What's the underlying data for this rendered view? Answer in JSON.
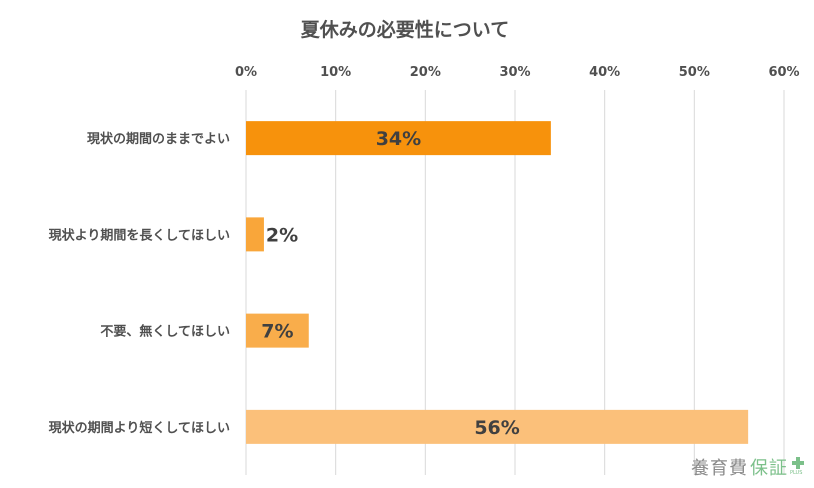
{
  "chart_data": {
    "type": "bar",
    "orientation": "horizontal",
    "title": "夏休みの必要性について",
    "categories": [
      "現状の期間のままでよい",
      "現状より期間を長くしてほしい",
      "不要、無くしてほしい",
      "現状の期間より短くしてほしい"
    ],
    "values": [
      34,
      2,
      7,
      56
    ],
    "data_labels": [
      "34%",
      "2%",
      "7%",
      "56%"
    ],
    "bar_colors": [
      "#f7920c",
      "#f9a63a",
      "#f9ad4b",
      "#fbc07a"
    ],
    "xlim": [
      0,
      60
    ],
    "x_ticks": [
      0,
      10,
      20,
      30,
      40,
      50,
      60
    ],
    "x_tick_labels": [
      "0%",
      "10%",
      "20%",
      "30%",
      "40%",
      "50%",
      "60%"
    ],
    "x_axis_position": "top",
    "grid": true,
    "legend": "none"
  },
  "watermark": {
    "text_a": "養育費",
    "text_b": "保証",
    "text_plus": "PLUS"
  }
}
